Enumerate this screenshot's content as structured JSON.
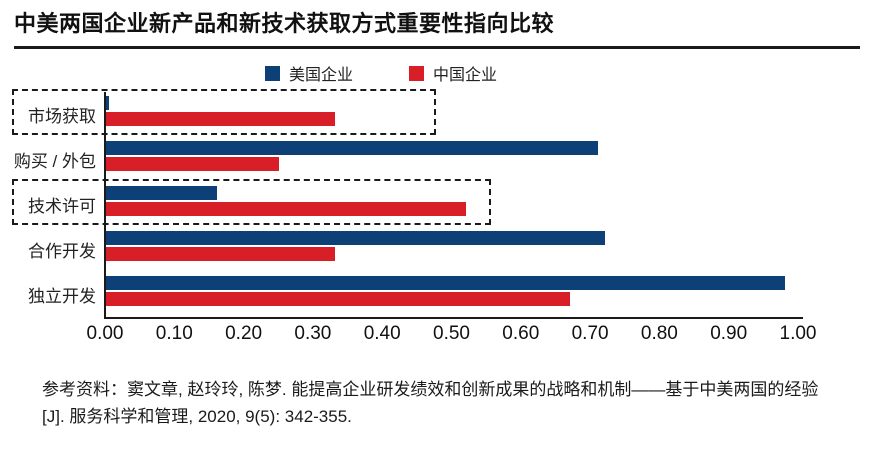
{
  "title": "中美两国企业新产品和新技术获取方式重要性指向比较",
  "legend": {
    "items": [
      {
        "label": "美国企业",
        "color": "#0d4076"
      },
      {
        "label": "中国企业",
        "color": "#d81e26"
      }
    ]
  },
  "chart_data": {
    "type": "bar",
    "orientation": "horizontal",
    "categories": [
      "市场获取",
      "购买 / 外包",
      "技术许可",
      "合作开发",
      "独立开发"
    ],
    "series": [
      {
        "name": "美国企业",
        "color": "#0d4076",
        "values": [
          0.005,
          0.71,
          0.16,
          0.72,
          0.98
        ]
      },
      {
        "name": "中国企业",
        "color": "#d81e26",
        "values": [
          0.33,
          0.25,
          0.52,
          0.33,
          0.67
        ]
      }
    ],
    "xlim": [
      0,
      1
    ],
    "xticks": [
      "0.00",
      "0.10",
      "0.20",
      "0.30",
      "0.40",
      "0.50",
      "0.60",
      "0.70",
      "0.80",
      "0.90",
      "1.00"
    ],
    "grid": false,
    "legend_position": "top-center",
    "highlight_boxes": [
      {
        "category_index": 0,
        "x_extent": 0.47,
        "style": "dashed"
      },
      {
        "category_index": 2,
        "x_extent": 0.55,
        "style": "dashed"
      }
    ]
  },
  "footer": {
    "citation": "参考资料：窦文章, 赵玲玲, 陈梦. 能提高企业研发绩效和创新成果的战略和机制——基于中美两国的经验[J]. 服务科学和管理, 2020, 9(5): 342-355."
  }
}
